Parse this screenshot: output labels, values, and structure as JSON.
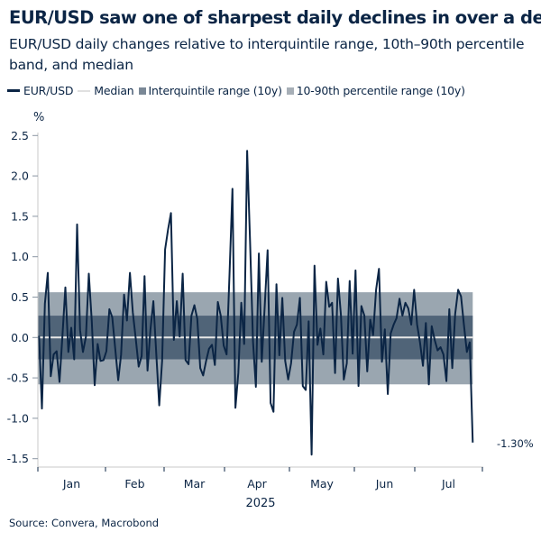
{
  "title": "EUR/USD saw one of sharpest daily declines in over a decade",
  "subtitle": "EUR/USD daily changes relative to interquintile range, 10th–90th percentile band, and median",
  "source": "Source: Convera, Macrobond",
  "colors": {
    "line": "#0b2545",
    "median": "#e8e8e8",
    "interquintile": "#506478",
    "percentile": "#9aa6b0"
  },
  "chart_data": {
    "type": "line",
    "ylabel": "%",
    "ylim": [
      -1.5,
      2.5
    ],
    "yticks": [
      "2.5",
      "2.0",
      "1.5",
      "1.0",
      "0.5",
      "0.0",
      "-0.5",
      "-1.0",
      "-1.5"
    ],
    "ytick_values": [
      2.5,
      2.0,
      1.5,
      1.0,
      0.5,
      0.0,
      -0.5,
      -1.0,
      -1.5
    ],
    "xlabel": "2025",
    "xticks": [
      "Jan",
      "Feb",
      "Mar",
      "Apr",
      "May",
      "Jun",
      "Jul"
    ],
    "x_start": "2025-01-01",
    "x_end": "2025-07-28",
    "frequency": "business daily",
    "grid": false,
    "legend_placement": "top",
    "legend": [
      "EUR/USD",
      "Median",
      "Interquintile range (10y)",
      "10-90th percentile range (10y)"
    ],
    "last_value_label": "-1.30%",
    "median": 0.0,
    "interquintile_range": [
      -0.27,
      0.27
    ],
    "percentile_10_90_range": [
      -0.58,
      0.56
    ],
    "series": [
      {
        "name": "EUR/USD",
        "values": [
          0.02,
          -0.88,
          0.42,
          0.8,
          -0.48,
          -0.21,
          -0.17,
          -0.55,
          0.03,
          0.62,
          -0.18,
          0.12,
          -0.27,
          1.4,
          0.09,
          -0.18,
          0.01,
          0.79,
          0.2,
          -0.59,
          -0.08,
          -0.29,
          -0.28,
          -0.17,
          0.35,
          0.25,
          -0.14,
          -0.53,
          -0.21,
          0.53,
          0.21,
          0.8,
          0.31,
          -0.02,
          -0.36,
          -0.23,
          0.76,
          -0.41,
          0.09,
          0.45,
          -0.2,
          -0.84,
          -0.29,
          1.09,
          1.33,
          1.54,
          -0.03,
          0.45,
          0.01,
          0.79,
          -0.28,
          -0.33,
          0.27,
          0.4,
          0.23,
          -0.38,
          -0.47,
          -0.29,
          -0.14,
          -0.09,
          -0.34,
          0.44,
          0.27,
          -0.1,
          -0.21,
          0.8,
          1.84,
          -0.87,
          -0.44,
          0.43,
          -0.08,
          2.31,
          1.2,
          -0.05,
          -0.61,
          1.04,
          -0.3,
          0.39,
          1.08,
          -0.81,
          -0.92,
          0.66,
          -0.22,
          0.49,
          -0.29,
          -0.52,
          -0.32,
          0.07,
          0.16,
          0.49,
          -0.6,
          -0.65,
          0.2,
          -1.45,
          0.89,
          -0.09,
          0.11,
          -0.21,
          0.69,
          0.38,
          0.43,
          -0.44,
          0.73,
          0.28,
          -0.52,
          -0.32,
          0.7,
          -0.2,
          0.83,
          -0.6,
          0.39,
          0.27,
          -0.42,
          0.22,
          0.03,
          0.59,
          0.85,
          -0.3,
          0.1,
          -0.7,
          0.05,
          0.16,
          0.24,
          0.48,
          0.27,
          0.43,
          0.36,
          0.16,
          0.59,
          0.16,
          -0.06,
          -0.35,
          0.18,
          -0.58,
          0.14,
          -0.03,
          -0.16,
          -0.12,
          -0.21,
          -0.54,
          0.35,
          -0.38,
          0.29,
          0.59,
          0.51,
          0.16,
          -0.18,
          -0.06,
          -1.3
        ]
      }
    ]
  }
}
